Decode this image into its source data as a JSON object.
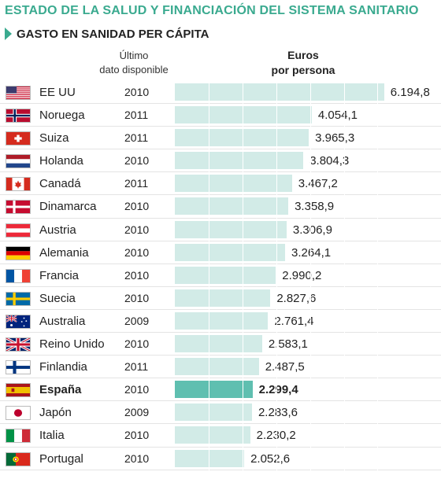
{
  "header": {
    "title": "ESTADO DE LA SALUD Y FINANCIACIÓN DEL SISTEMA SANITARIO",
    "subtitle": "GASTO EN SANIDAD PER CÁPITA",
    "date_col_line1": "Último",
    "date_col_line2": "dato disponible",
    "value_col_line1": "Euros",
    "value_col_line2": "por persona"
  },
  "colors": {
    "accent": "#3aaa8f",
    "bar": "#d2ebe7",
    "bar_highlight": "#5fbfb0"
  },
  "chart_data": {
    "type": "bar",
    "orientation": "horizontal",
    "title": "GASTO EN SANIDAD PER CÁPITA",
    "unit": "Euros por persona",
    "categories": [
      "EE UU",
      "Noruega",
      "Suiza",
      "Holanda",
      "Canadá",
      "Dinamarca",
      "Austria",
      "Alemania",
      "Francia",
      "Suecia",
      "Australia",
      "Reino Unido",
      "Finlandia",
      "España",
      "Japón",
      "Italia",
      "Portugal"
    ],
    "years": [
      "2010",
      "2011",
      "2011",
      "2010",
      "2011",
      "2010",
      "2010",
      "2010",
      "2010",
      "2010",
      "2009",
      "2010",
      "2011",
      "2010",
      "2009",
      "2010",
      "2010"
    ],
    "values": [
      6194.8,
      4054.1,
      3965.3,
      3804.3,
      3467.2,
      3358.9,
      3306.9,
      3264.1,
      2990.2,
      2827.6,
      2761.4,
      2583.1,
      2487.5,
      2299.4,
      2283.6,
      2230.2,
      2052.6
    ],
    "value_labels": [
      "6.194,8",
      "4.054,1",
      "3.965,3",
      "3.804,3",
      "3.467,2",
      "3.358,9",
      "3.306,9",
      "3.264,1",
      "2.990,2",
      "2.827,6",
      "2.761,4",
      "2.583,1",
      "2.487,5",
      "2.299,4",
      "2.283,6",
      "2.230,2",
      "2.052,6"
    ],
    "flags": [
      "us-flag-icon",
      "no-flag-icon",
      "ch-flag-icon",
      "nl-flag-icon",
      "ca-flag-icon",
      "dk-flag-icon",
      "at-flag-icon",
      "de-flag-icon",
      "fr-flag-icon",
      "se-flag-icon",
      "au-flag-icon",
      "gb-flag-icon",
      "fi-flag-icon",
      "es-flag-icon",
      "jp-flag-icon",
      "it-flag-icon",
      "pt-flag-icon"
    ],
    "highlight": "España",
    "xlim": [
      0,
      6200
    ],
    "grid": true,
    "legend": "none"
  }
}
